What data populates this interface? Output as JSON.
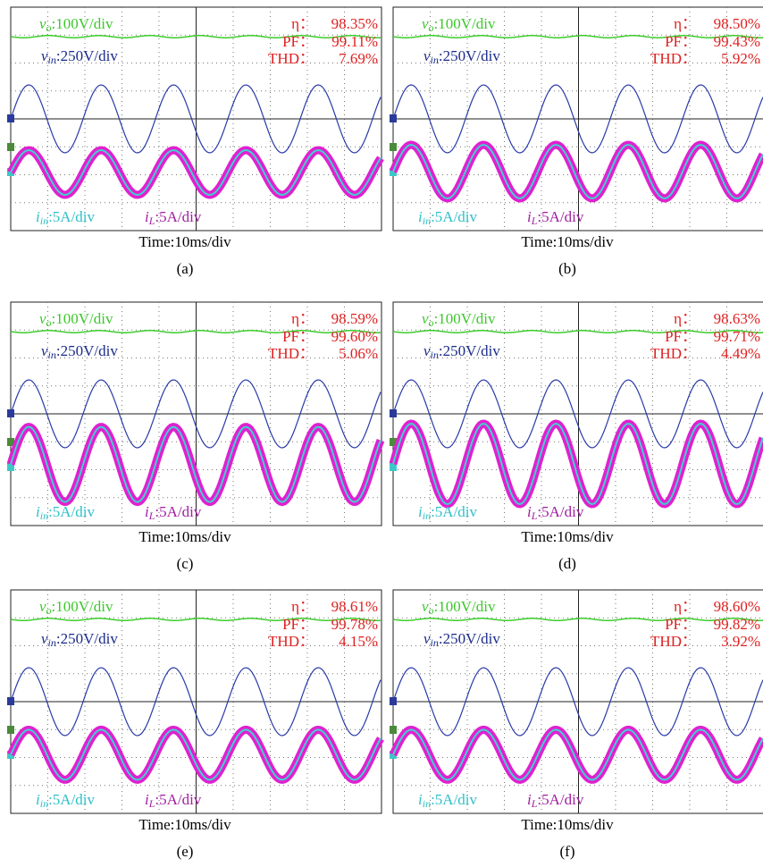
{
  "panels": [
    {
      "vo_sym": "v",
      "vo_sub": "o",
      "vo_scale": ":100V/div",
      "vin_sym": "v",
      "vin_sub": "in",
      "vin_scale": ":250V/div",
      "eta_label": "η：",
      "eta": "98.35%",
      "pf_label": "PF：",
      "pf": "99.11%",
      "thd_label": "THD：",
      "thd": "7.69%",
      "iin_sym": "i",
      "iin_sub": "in",
      "iin_scale": ":5A/div",
      "il_sym": "i",
      "il_sub": "L",
      "il_scale": ":5A/div",
      "time": "Time:10ms/div",
      "caption": "(a)"
    },
    {
      "vo_sym": "v",
      "vo_sub": "o",
      "vo_scale": ":100V/div",
      "vin_sym": "v",
      "vin_sub": "in",
      "vin_scale": ":250V/div",
      "eta_label": "η：",
      "eta": "98.50%",
      "pf_label": "PF：",
      "pf": "99.43%",
      "thd_label": "THD：",
      "thd": "5.92%",
      "iin_sym": "i",
      "iin_sub": "in",
      "iin_scale": ":5A/div",
      "il_sym": "i",
      "il_sub": "L",
      "il_scale": ":5A/div",
      "time": "Time:10ms/div",
      "caption": "(b)"
    },
    {
      "vo_sym": "v",
      "vo_sub": "o",
      "vo_scale": ":100V/div",
      "vin_sym": "v",
      "vin_sub": "in",
      "vin_scale": ":250V/div",
      "eta_label": "η：",
      "eta": "98.59%",
      "pf_label": "PF：",
      "pf": "99.60%",
      "thd_label": "THD：",
      "thd": "5.06%",
      "iin_sym": "i",
      "iin_sub": "in",
      "iin_scale": ":5A/div",
      "il_sym": "i",
      "il_sub": "L",
      "il_scale": ":5A/div",
      "time": "Time:10ms/div",
      "caption": "(c)"
    },
    {
      "vo_sym": "v",
      "vo_sub": "o",
      "vo_scale": ":100V/div",
      "vin_sym": "v",
      "vin_sub": "in",
      "vin_scale": ":250V/div",
      "eta_label": "η：",
      "eta": "98.63%",
      "pf_label": "PF：",
      "pf": "99.71%",
      "thd_label": "THD：",
      "thd": "4.49%",
      "iin_sym": "i",
      "iin_sub": "in",
      "iin_scale": ":5A/div",
      "il_sym": "i",
      "il_sub": "L",
      "il_scale": ":5A/div",
      "time": "Time:10ms/div",
      "caption": "(d)"
    },
    {
      "vo_sym": "v",
      "vo_sub": "o",
      "vo_scale": ":100V/div",
      "vin_sym": "v",
      "vin_sub": "in",
      "vin_scale": ":250V/div",
      "eta_label": "η：",
      "eta": "98.61%",
      "pf_label": "PF：",
      "pf": "99.78%",
      "thd_label": "THD：",
      "thd": "4.15%",
      "iin_sym": "i",
      "iin_sub": "in",
      "iin_scale": ":5A/div",
      "il_sym": "i",
      "il_sub": "L",
      "il_scale": ":5A/div",
      "time": "Time:10ms/div",
      "caption": "(e)"
    },
    {
      "vo_sym": "v",
      "vo_sub": "o",
      "vo_scale": ":100V/div",
      "vin_sym": "v",
      "vin_sub": "in",
      "vin_scale": ":250V/div",
      "eta_label": "η：",
      "eta": "98.60%",
      "pf_label": "PF：",
      "pf": "99.82%",
      "thd_label": "THD：",
      "thd": "3.92%",
      "iin_sym": "i",
      "iin_sub": "in",
      "iin_scale": ":5A/div",
      "il_sym": "i",
      "il_sub": "L",
      "il_scale": ":5A/div",
      "time": "Time:10ms/div",
      "caption": "(f)"
    }
  ]
}
